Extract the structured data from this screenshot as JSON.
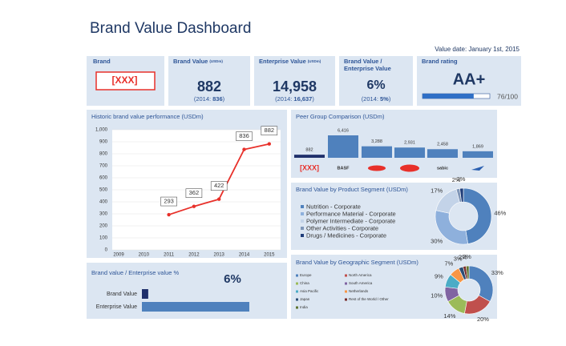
{
  "title": "Brand Value Dashboard",
  "value_date": "Value date: January 1st, 2015",
  "cards": [
    {
      "title_lines": [
        "Brand"
      ],
      "value": "[XXX]"
    },
    {
      "title_lines": [
        "Brand Value"
      ],
      "unit": "(USDm)",
      "value": "882",
      "prior_open": "(2014:",
      "prior_value": "836",
      "prior_close": ")"
    },
    {
      "title_lines": [
        "Enterprise Value"
      ],
      "unit": "(USDm)",
      "value": "14,958",
      "prior_open": "(2014:",
      "prior_value": "16,637",
      "prior_close": ")"
    },
    {
      "title_lines": [
        "Brand Value /",
        "Enterprise Value"
      ],
      "value": "6%",
      "prior_open": "(2014:",
      "prior_value": "5%",
      "prior_close": ")"
    },
    {
      "title_lines": [
        "Brand rating"
      ],
      "value": "AA+",
      "score": 76,
      "score_max": 100,
      "score_label": "76/100"
    }
  ],
  "chart_data": [
    {
      "type": "line",
      "title": "Historic brand value performance (USDm)",
      "categories": [
        "2009",
        "2010",
        "2011",
        "2012",
        "2013",
        "2014",
        "2015"
      ],
      "values": [
        null,
        null,
        293,
        362,
        422,
        836,
        882
      ],
      "value_labels": [
        null,
        null,
        "293",
        "362",
        "422",
        "836",
        "882"
      ],
      "color": "#e8302a",
      "ylim": [
        0,
        1000
      ],
      "yticks": [
        0,
        100,
        200,
        300,
        400,
        500,
        600,
        700,
        800,
        900,
        {
          "value": 1000,
          "label": "1,000"
        }
      ]
    },
    {
      "type": "bar",
      "title": "Peer Group Comparison (USDm)",
      "categories": [
        "[XXX]",
        "BASF",
        null,
        "DUPONT",
        "sabic",
        null
      ],
      "values": [
        882,
        6416,
        3288,
        2931,
        2458,
        1869
      ],
      "value_labels": [
        "882",
        "6,416",
        "3,288",
        "2,931",
        "2,458",
        "1,869"
      ],
      "colors": [
        "#1f2f6b",
        "#4f81bd",
        "#4f81bd",
        "#4f81bd",
        "#4f81bd",
        "#4f81bd"
      ]
    },
    {
      "type": "donut",
      "title": "Brand Value by Product Segment (USDm)",
      "categories": [
        "Nutrition - Corporate",
        "Performance Material - Corporate",
        "Polymer Intermediate - Corporate",
        "Other Activities - Corporate",
        "Drugs / Medicines - Corporate"
      ],
      "values": [
        46,
        30,
        17,
        2,
        2
      ],
      "value_labels": [
        "46%",
        "30%",
        "17%",
        "2%",
        "2%"
      ],
      "colors": [
        "#4f81bd",
        "#8eb0dc",
        "#c3d3e8",
        "#7f96b8",
        "#1f3d7a"
      ]
    },
    {
      "type": "donut",
      "title": "Brand Value by Geographic Segment (USDm)",
      "categories": [
        "Europe",
        "North America",
        "China",
        "South America",
        "Asia Pacific",
        "Netherlands",
        "Japan",
        "Rest of the World / Other",
        "India"
      ],
      "values": [
        33,
        20,
        14,
        10,
        9,
        7,
        3,
        2,
        2
      ],
      "value_labels": [
        "33%",
        "20%",
        "14%",
        "10%",
        "9%",
        "7%",
        "3%",
        "2%",
        "2%"
      ],
      "colors": [
        "#4f81bd",
        "#c0504d",
        "#9bbb59",
        "#8064a2",
        "#4bacc6",
        "#f79646",
        "#2c4d75",
        "#772c2a",
        "#5f7530"
      ]
    },
    {
      "type": "hbar",
      "title": "Brand value / Enterprise value %",
      "headline": "6%",
      "categories": [
        "Brand Value",
        "Enterprise Value"
      ],
      "values": [
        882,
        14958
      ],
      "colors": [
        "#1f2f6b",
        "#4f81bd"
      ]
    }
  ]
}
